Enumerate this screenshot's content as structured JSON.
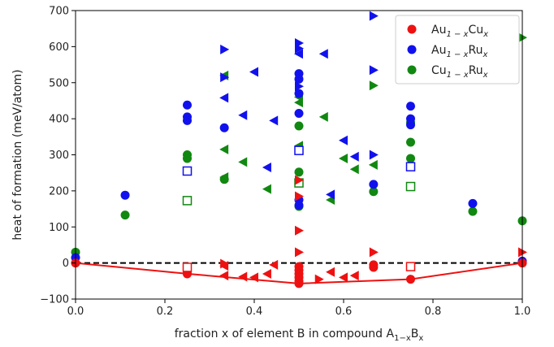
{
  "chart_data": {
    "type": "scatter",
    "xlabel": "fraction x of element B in compound A",
    "xlabel_sub_1": "1−x",
    "xlabel_mid": "B",
    "xlabel_sub_2": "x",
    "ylabel": "heat of formation (meV/atom)",
    "xlim": [
      0.0,
      1.0
    ],
    "ylim": [
      -100,
      700
    ],
    "xticks": [
      0.0,
      0.2,
      0.4,
      0.6,
      0.8,
      1.0
    ],
    "xtick_labels": [
      "0.0",
      "0.2",
      "0.4",
      "0.6",
      "0.8",
      "1.0"
    ],
    "yticks": [
      -100,
      0,
      100,
      200,
      300,
      400,
      500,
      600,
      700
    ],
    "ytick_labels": [
      "−100",
      "0",
      "100",
      "200",
      "300",
      "400",
      "500",
      "600",
      "700"
    ],
    "reference_line_y": 0,
    "legend_position": "top-right",
    "legend": [
      {
        "base": "Au",
        "sub1": "1 − x",
        "mid": "Cu",
        "sub2": "x",
        "color": "#ee1111"
      },
      {
        "base": "Au",
        "sub1": "1 − x",
        "mid": "Ru",
        "sub2": "x",
        "color": "#1111ee"
      },
      {
        "base": "Cu",
        "sub1": "1 − x",
        "mid": "Ru",
        "sub2": "x",
        "color": "#118811"
      }
    ],
    "series": [
      {
        "color": "#ee1111",
        "hull": [
          [
            0.0,
            0
          ],
          [
            0.25,
            -30
          ],
          [
            0.5,
            -57
          ],
          [
            0.75,
            -45
          ],
          [
            1.0,
            0
          ]
        ],
        "points": [
          {
            "x": 0.0,
            "y": 0,
            "m": "circle"
          },
          {
            "x": 0.25,
            "y": -25,
            "m": "circle"
          },
          {
            "x": 0.25,
            "y": -30,
            "m": "circle"
          },
          {
            "x": 0.25,
            "y": -12,
            "m": "square"
          },
          {
            "x": 0.333,
            "y": -2,
            "m": "tri-right"
          },
          {
            "x": 0.333,
            "y": -8,
            "m": "tri-left"
          },
          {
            "x": 0.333,
            "y": -35,
            "m": "tri-left"
          },
          {
            "x": 0.375,
            "y": -38,
            "m": "tri-left"
          },
          {
            "x": 0.4,
            "y": -40,
            "m": "tri-left"
          },
          {
            "x": 0.429,
            "y": -30,
            "m": "tri-left"
          },
          {
            "x": 0.444,
            "y": -5,
            "m": "tri-left"
          },
          {
            "x": 0.5,
            "y": -10,
            "m": "circle"
          },
          {
            "x": 0.5,
            "y": -20,
            "m": "circle"
          },
          {
            "x": 0.5,
            "y": -30,
            "m": "circle"
          },
          {
            "x": 0.5,
            "y": -40,
            "m": "circle"
          },
          {
            "x": 0.5,
            "y": -50,
            "m": "circle"
          },
          {
            "x": 0.5,
            "y": -57,
            "m": "circle"
          },
          {
            "x": 0.5,
            "y": 30,
            "m": "tri-right"
          },
          {
            "x": 0.5,
            "y": 90,
            "m": "tri-right"
          },
          {
            "x": 0.5,
            "y": 185,
            "m": "tri-right"
          },
          {
            "x": 0.5,
            "y": 230,
            "m": "tri-right"
          },
          {
            "x": 0.545,
            "y": -45,
            "m": "tri-right"
          },
          {
            "x": 0.571,
            "y": -25,
            "m": "tri-left"
          },
          {
            "x": 0.6,
            "y": -40,
            "m": "tri-left"
          },
          {
            "x": 0.625,
            "y": -35,
            "m": "tri-left"
          },
          {
            "x": 0.667,
            "y": -5,
            "m": "circle"
          },
          {
            "x": 0.667,
            "y": -12,
            "m": "circle"
          },
          {
            "x": 0.667,
            "y": 30,
            "m": "tri-right"
          },
          {
            "x": 0.75,
            "y": -45,
            "m": "circle"
          },
          {
            "x": 0.75,
            "y": -10,
            "m": "square"
          },
          {
            "x": 1.0,
            "y": 0,
            "m": "circle"
          },
          {
            "x": 1.0,
            "y": 30,
            "m": "tri-right"
          }
        ]
      },
      {
        "color": "#1111ee",
        "points": [
          {
            "x": 0.0,
            "y": 15,
            "m": "circle"
          },
          {
            "x": 0.111,
            "y": 188,
            "m": "circle"
          },
          {
            "x": 0.25,
            "y": 438,
            "m": "circle"
          },
          {
            "x": 0.25,
            "y": 405,
            "m": "circle"
          },
          {
            "x": 0.25,
            "y": 395,
            "m": "circle"
          },
          {
            "x": 0.25,
            "y": 255,
            "m": "square"
          },
          {
            "x": 0.333,
            "y": 592,
            "m": "tri-right"
          },
          {
            "x": 0.333,
            "y": 515,
            "m": "tri-right"
          },
          {
            "x": 0.333,
            "y": 458,
            "m": "tri-left"
          },
          {
            "x": 0.333,
            "y": 375,
            "m": "circle"
          },
          {
            "x": 0.375,
            "y": 410,
            "m": "tri-left"
          },
          {
            "x": 0.4,
            "y": 530,
            "m": "tri-left"
          },
          {
            "x": 0.429,
            "y": 265,
            "m": "tri-left"
          },
          {
            "x": 0.444,
            "y": 395,
            "m": "tri-left"
          },
          {
            "x": 0.5,
            "y": 610,
            "m": "tri-right"
          },
          {
            "x": 0.5,
            "y": 595,
            "m": "tri-right"
          },
          {
            "x": 0.5,
            "y": 580,
            "m": "tri-left"
          },
          {
            "x": 0.5,
            "y": 525,
            "m": "circle"
          },
          {
            "x": 0.5,
            "y": 510,
            "m": "circle"
          },
          {
            "x": 0.5,
            "y": 490,
            "m": "tri-right"
          },
          {
            "x": 0.5,
            "y": 470,
            "m": "circle"
          },
          {
            "x": 0.5,
            "y": 415,
            "m": "circle"
          },
          {
            "x": 0.5,
            "y": 312,
            "m": "square"
          },
          {
            "x": 0.5,
            "y": 175,
            "m": "circle"
          },
          {
            "x": 0.5,
            "y": 160,
            "m": "circle"
          },
          {
            "x": 0.556,
            "y": 580,
            "m": "tri-left"
          },
          {
            "x": 0.571,
            "y": 190,
            "m": "tri-left"
          },
          {
            "x": 0.6,
            "y": 340,
            "m": "tri-left"
          },
          {
            "x": 0.625,
            "y": 295,
            "m": "tri-left"
          },
          {
            "x": 0.667,
            "y": 685,
            "m": "tri-right"
          },
          {
            "x": 0.667,
            "y": 535,
            "m": "tri-right"
          },
          {
            "x": 0.667,
            "y": 300,
            "m": "tri-right"
          },
          {
            "x": 0.667,
            "y": 218,
            "m": "circle"
          },
          {
            "x": 0.75,
            "y": 435,
            "m": "circle"
          },
          {
            "x": 0.75,
            "y": 400,
            "m": "circle"
          },
          {
            "x": 0.75,
            "y": 383,
            "m": "circle"
          },
          {
            "x": 0.75,
            "y": 267,
            "m": "square"
          },
          {
            "x": 0.889,
            "y": 165,
            "m": "circle"
          },
          {
            "x": 1.0,
            "y": 5,
            "m": "circle"
          }
        ]
      },
      {
        "color": "#118811",
        "points": [
          {
            "x": 0.0,
            "y": 30,
            "m": "circle"
          },
          {
            "x": 0.0,
            "y": 0,
            "m": "circle"
          },
          {
            "x": 0.111,
            "y": 133,
            "m": "circle"
          },
          {
            "x": 0.25,
            "y": 300,
            "m": "circle"
          },
          {
            "x": 0.25,
            "y": 290,
            "m": "circle"
          },
          {
            "x": 0.25,
            "y": 173,
            "m": "square"
          },
          {
            "x": 0.333,
            "y": 520,
            "m": "tri-left"
          },
          {
            "x": 0.333,
            "y": 315,
            "m": "tri-left"
          },
          {
            "x": 0.333,
            "y": 238,
            "m": "tri-left"
          },
          {
            "x": 0.333,
            "y": 232,
            "m": "circle"
          },
          {
            "x": 0.375,
            "y": 280,
            "m": "tri-left"
          },
          {
            "x": 0.429,
            "y": 205,
            "m": "tri-left"
          },
          {
            "x": 0.5,
            "y": 460,
            "m": "tri-left"
          },
          {
            "x": 0.5,
            "y": 445,
            "m": "tri-left"
          },
          {
            "x": 0.5,
            "y": 380,
            "m": "circle"
          },
          {
            "x": 0.5,
            "y": 325,
            "m": "tri-left"
          },
          {
            "x": 0.5,
            "y": 252,
            "m": "circle"
          },
          {
            "x": 0.5,
            "y": 222,
            "m": "square"
          },
          {
            "x": 0.5,
            "y": 157,
            "m": "circle"
          },
          {
            "x": 0.556,
            "y": 405,
            "m": "tri-left"
          },
          {
            "x": 0.571,
            "y": 175,
            "m": "tri-left"
          },
          {
            "x": 0.6,
            "y": 290,
            "m": "tri-left"
          },
          {
            "x": 0.625,
            "y": 260,
            "m": "tri-left"
          },
          {
            "x": 0.667,
            "y": 492,
            "m": "tri-right"
          },
          {
            "x": 0.667,
            "y": 272,
            "m": "tri-left"
          },
          {
            "x": 0.667,
            "y": 198,
            "m": "circle"
          },
          {
            "x": 0.75,
            "y": 390,
            "m": "circle"
          },
          {
            "x": 0.75,
            "y": 335,
            "m": "circle"
          },
          {
            "x": 0.75,
            "y": 290,
            "m": "circle"
          },
          {
            "x": 0.75,
            "y": 212,
            "m": "square"
          },
          {
            "x": 0.889,
            "y": 143,
            "m": "circle"
          },
          {
            "x": 1.0,
            "y": 625,
            "m": "tri-right"
          },
          {
            "x": 1.0,
            "y": 117,
            "m": "circle"
          },
          {
            "x": 1.0,
            "y": 0,
            "m": "circle"
          }
        ]
      }
    ]
  }
}
